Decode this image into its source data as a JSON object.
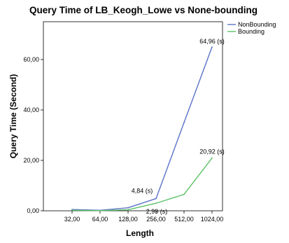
{
  "chart_data": {
    "type": "line",
    "title": "Query Time of LB_Keogh_Lowe vs None-bounding",
    "xlabel": "Length",
    "ylabel": "Query Time (Second)",
    "categories": [
      "32,00",
      "64,00",
      "128,00",
      "256,00",
      "512,00",
      "1024,00"
    ],
    "yticks": [
      "0,00",
      "20,00",
      "40,00",
      "60,00"
    ],
    "ylim": [
      0,
      75
    ],
    "legend_position": "top-right",
    "grid": false,
    "series": [
      {
        "name": "NonBounding",
        "color": "#5b73c8",
        "values": [
          0.5,
          0.2,
          1.2,
          4.84,
          35.0,
          64.96
        ]
      },
      {
        "name": "Bounding",
        "color": "#5cc266",
        "values": [
          0.2,
          0.05,
          0.4,
          2.99,
          6.5,
          20.92
        ]
      }
    ],
    "annotations": [
      {
        "text": "64,96 (s)",
        "category": "1024,00",
        "value": 64.96
      },
      {
        "text": "20,92 (s)",
        "category": "1024,00",
        "value": 20.92
      },
      {
        "text": "4,84 (s)",
        "category": "256,00",
        "value": 4.84
      },
      {
        "text": "2,99 (s)",
        "category": "256,00",
        "value": 2.99
      }
    ]
  }
}
